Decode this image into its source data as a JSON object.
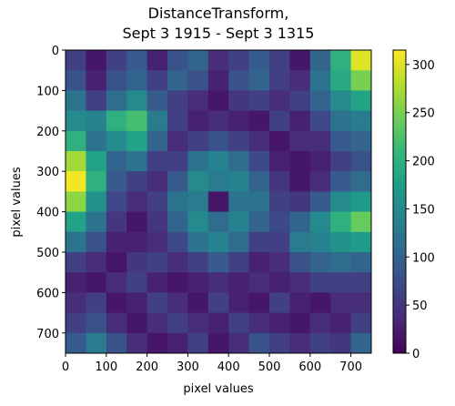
{
  "chart_data": {
    "type": "heatmap",
    "title": [
      "DistanceTransform,",
      "Sept 3 1915 - Sept 3 1315"
    ],
    "x_label": "pixel values",
    "y_label": "pixel values",
    "x": [
      25,
      75,
      125,
      175,
      225,
      275,
      325,
      375,
      425,
      475,
      525,
      575,
      625,
      675,
      725
    ],
    "y": [
      25,
      75,
      125,
      175,
      225,
      275,
      325,
      375,
      425,
      475,
      525,
      575,
      625,
      675,
      725
    ],
    "z": [
      [
        60,
        20,
        60,
        90,
        30,
        80,
        100,
        40,
        60,
        90,
        60,
        20,
        100,
        200,
        300
      ],
      [
        80,
        30,
        80,
        100,
        60,
        100,
        80,
        30,
        80,
        100,
        60,
        40,
        120,
        190,
        250
      ],
      [
        120,
        60,
        110,
        150,
        90,
        60,
        40,
        20,
        50,
        60,
        40,
        60,
        100,
        150,
        180
      ],
      [
        150,
        140,
        200,
        220,
        130,
        60,
        30,
        40,
        30,
        20,
        60,
        30,
        70,
        120,
        130
      ],
      [
        200,
        120,
        150,
        180,
        100,
        40,
        60,
        80,
        60,
        40,
        20,
        40,
        40,
        90,
        100
      ],
      [
        270,
        180,
        100,
        120,
        60,
        60,
        120,
        140,
        110,
        70,
        30,
        20,
        30,
        60,
        80
      ],
      [
        310,
        200,
        90,
        60,
        40,
        90,
        150,
        130,
        140,
        100,
        50,
        20,
        40,
        90,
        110
      ],
      [
        260,
        160,
        70,
        40,
        60,
        120,
        130,
        20,
        120,
        120,
        60,
        50,
        90,
        150,
        170
      ],
      [
        180,
        120,
        50,
        20,
        50,
        100,
        150,
        110,
        140,
        100,
        70,
        100,
        150,
        200,
        240
      ],
      [
        120,
        80,
        30,
        30,
        40,
        70,
        120,
        140,
        110,
        60,
        60,
        130,
        140,
        160,
        170
      ],
      [
        60,
        40,
        20,
        50,
        60,
        40,
        60,
        90,
        60,
        30,
        40,
        80,
        100,
        110,
        100
      ],
      [
        30,
        20,
        40,
        60,
        30,
        20,
        30,
        40,
        30,
        40,
        30,
        40,
        60,
        60,
        60
      ],
      [
        40,
        60,
        20,
        30,
        60,
        40,
        20,
        60,
        30,
        20,
        60,
        30,
        20,
        40,
        40
      ],
      [
        60,
        80,
        40,
        20,
        40,
        60,
        40,
        30,
        60,
        40,
        30,
        20,
        40,
        30,
        60
      ],
      [
        90,
        130,
        80,
        40,
        20,
        30,
        60,
        20,
        40,
        80,
        60,
        40,
        60,
        50,
        100
      ]
    ],
    "cell_size": 50,
    "xlim": [
      0,
      750
    ],
    "ylim": [
      750,
      0
    ],
    "xticks": [
      0,
      100,
      200,
      300,
      400,
      500,
      600,
      700
    ],
    "yticks": [
      0,
      100,
      200,
      300,
      400,
      500,
      600,
      700
    ],
    "colormap": "viridis",
    "clim": [
      0,
      315
    ],
    "cticks": [
      0,
      50,
      100,
      150,
      200,
      250,
      300
    ]
  }
}
